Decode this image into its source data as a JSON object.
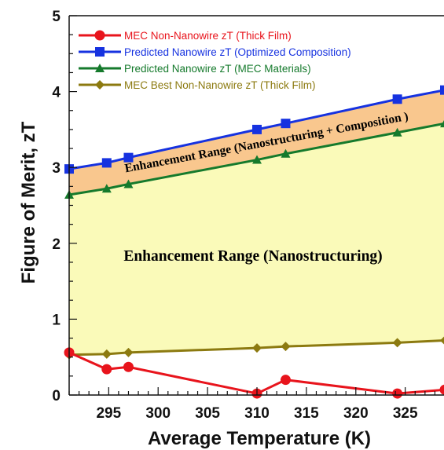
{
  "chart_data": {
    "type": "line",
    "xlabel": "Average Temperature (K)",
    "ylabel": "Figure of Merit, zT",
    "xlim": [
      291,
      329
    ],
    "ylim": [
      0,
      5
    ],
    "x_ticks": [
      295,
      300,
      305,
      310,
      315,
      320,
      325
    ],
    "y_ticks": [
      0,
      1,
      2,
      3,
      4,
      5
    ],
    "grid": false,
    "legend_position": "top-left",
    "series": [
      {
        "name": "MEC Non-Nanowire zT (Thick Film)",
        "color": "#e8141c",
        "marker": "circle",
        "x": [
          291,
          294.8,
          297,
          310,
          312.9,
          324.2,
          329
        ],
        "y": [
          0.56,
          0.34,
          0.37,
          0.02,
          0.2,
          0.02,
          0.07
        ]
      },
      {
        "name": "Predicted Nanowire zT (Optimized Composition)",
        "color": "#1632e0",
        "marker": "square",
        "x": [
          291,
          294.8,
          297,
          310,
          312.9,
          324.2,
          329
        ],
        "y": [
          2.98,
          3.06,
          3.13,
          3.5,
          3.58,
          3.9,
          4.02
        ]
      },
      {
        "name": "Predicted Nanowire zT (MEC Materials)",
        "color": "#157a2c",
        "marker": "triangle",
        "x": [
          291,
          294.8,
          297,
          310,
          312.9,
          324.2,
          329
        ],
        "y": [
          2.64,
          2.72,
          2.78,
          3.1,
          3.18,
          3.46,
          3.58
        ]
      },
      {
        "name": "MEC Best Non-Nanowire zT (Thick Film)",
        "color": "#8c7a10",
        "marker": "diamond",
        "x": [
          291,
          294.8,
          297,
          310,
          312.9,
          324.2,
          329
        ],
        "y": [
          0.53,
          0.54,
          0.56,
          0.62,
          0.64,
          0.69,
          0.72
        ]
      }
    ],
    "regions": [
      {
        "label": "Enhancement Range (Nanostructuring + Composition )",
        "between": [
          2,
          1
        ],
        "fill": "#f9c78e"
      },
      {
        "label": "Enhancement Range (Nanostructuring)",
        "between": [
          3,
          2
        ],
        "fill": "#fafab9"
      }
    ]
  }
}
